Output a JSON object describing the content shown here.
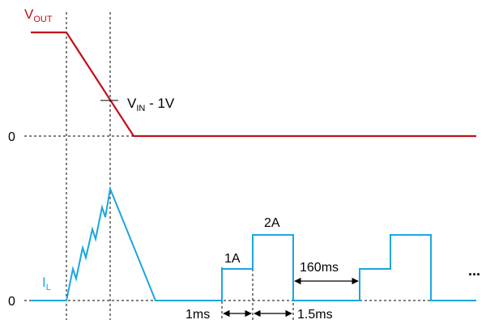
{
  "signals": {
    "vout": {
      "label_main": "V",
      "label_sub": "OUT",
      "color": "#c0101a"
    },
    "il": {
      "label_main": "I",
      "label_sub": "L",
      "color": "#1aa6e0"
    }
  },
  "zero_labels": {
    "vout_zero": "0",
    "il_zero": "0"
  },
  "annotations": {
    "vin_threshold": {
      "main": "V",
      "sub": "IN",
      "tail": " - 1V"
    },
    "current_1a": "1A",
    "current_2a": "2A",
    "interval_160ms": "160ms",
    "interval_1ms": "1ms",
    "interval_1_5ms": "1.5ms",
    "continuation": "..."
  },
  "colors": {
    "axis": "#000000"
  }
}
